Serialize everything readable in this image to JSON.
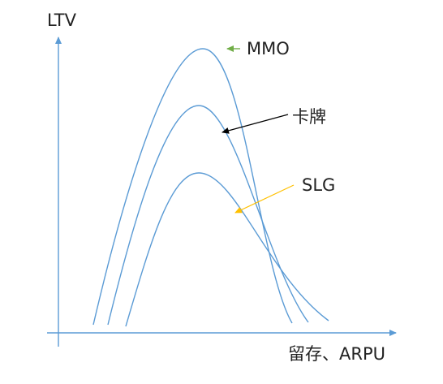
{
  "axes": {
    "y_label": "LTV",
    "x_label": "留存、ARPU"
  },
  "curves": [
    {
      "label": "MMO"
    },
    {
      "label": "卡牌"
    },
    {
      "label": "SLG"
    }
  ]
}
